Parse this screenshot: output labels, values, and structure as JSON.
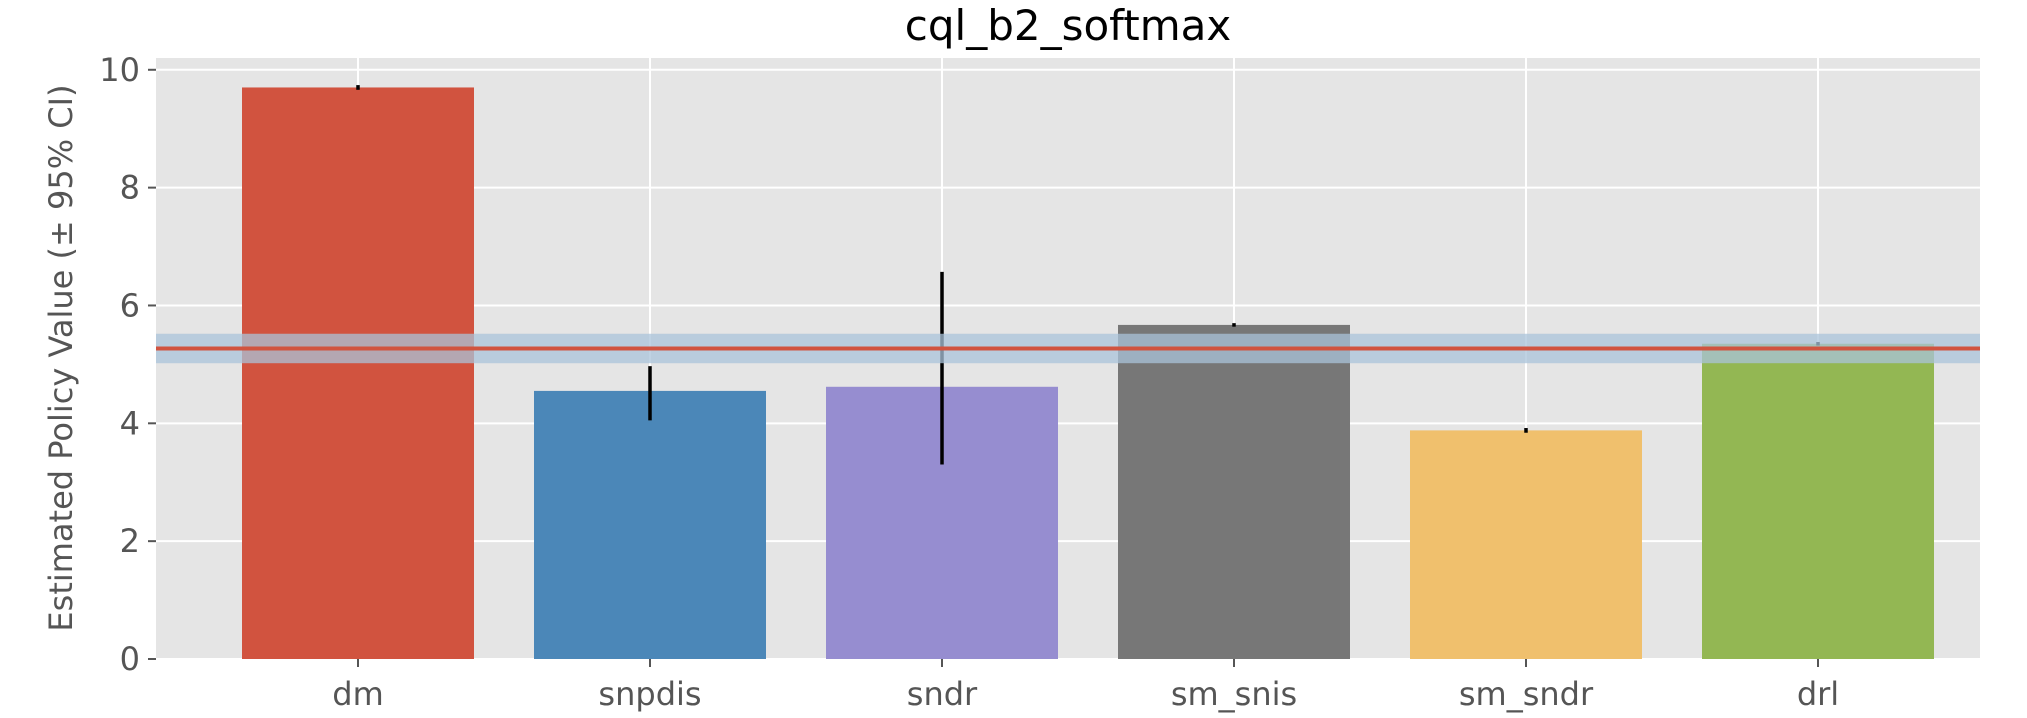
{
  "chart_data": {
    "type": "bar",
    "title": "cql_b2_softmax",
    "xlabel": "",
    "ylabel": "Estimated Policy Value (± 95% CI)",
    "categories": [
      "dm",
      "snpdis",
      "sndr",
      "sm_snis",
      "sm_sndr",
      "drl"
    ],
    "values": [
      9.7,
      4.55,
      4.62,
      5.67,
      3.88,
      5.35
    ],
    "error_low": [
      9.66,
      4.05,
      3.3,
      5.64,
      3.84,
      5.32
    ],
    "error_high": [
      9.74,
      4.97,
      6.57,
      5.7,
      3.92,
      5.38
    ],
    "colors": [
      "#d1533f",
      "#4b87b8",
      "#968dd0",
      "#777777",
      "#f0c06d",
      "#93b753"
    ],
    "reference_line": {
      "value": 5.27,
      "band": [
        5.02,
        5.52
      ],
      "color": "#d1533f",
      "band_color": "#a9c3d9"
    },
    "ylim": [
      0,
      10.2
    ],
    "yticks": [
      0,
      2,
      4,
      6,
      8,
      10
    ],
    "grid": true,
    "style": "ggplot"
  }
}
